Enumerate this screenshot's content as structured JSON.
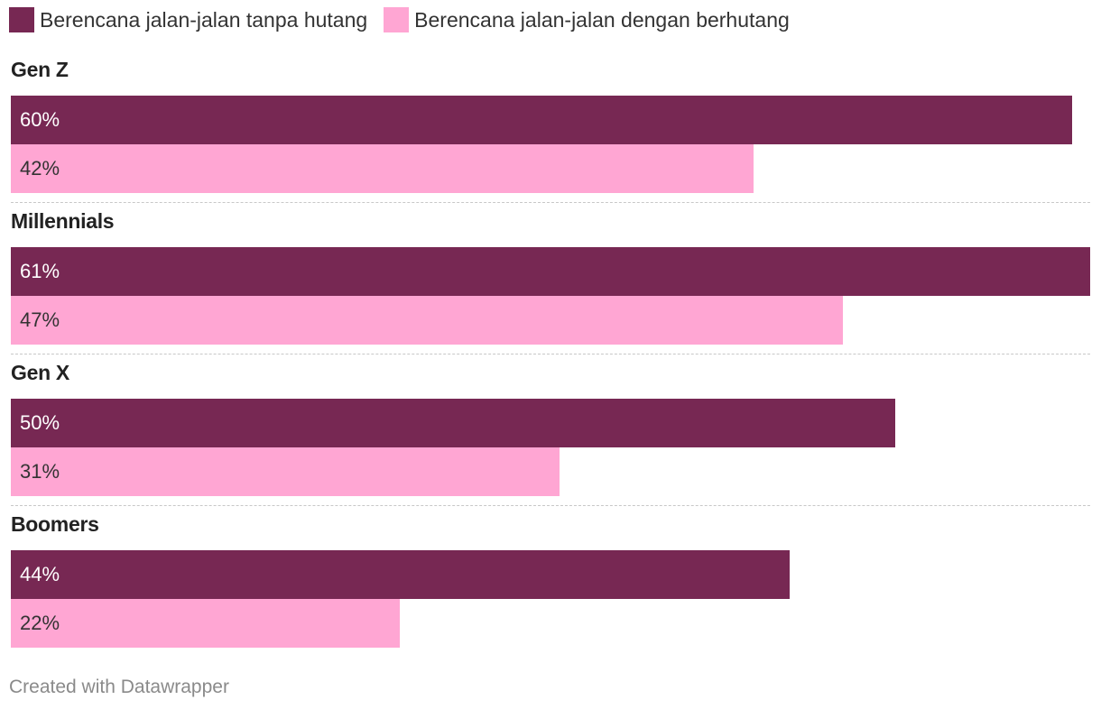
{
  "colors": {
    "series1": "#772853",
    "series2": "#ffa6d3",
    "label_on_dark": "#ffffff",
    "label_on_light": "#333333"
  },
  "legend": [
    {
      "label": "Berencana jalan-jalan tanpa hutang"
    },
    {
      "label": "Berencana jalan-jalan dengan berhutang"
    }
  ],
  "chart_data": {
    "type": "bar",
    "orientation": "horizontal",
    "categories": [
      "Gen Z",
      "Millennials",
      "Gen X",
      "Boomers"
    ],
    "series": [
      {
        "name": "Berencana jalan-jalan tanpa hutang",
        "values": [
          60,
          61,
          50,
          44
        ],
        "labels": [
          "60%",
          "61%",
          "50%",
          "44%"
        ]
      },
      {
        "name": "Berencana jalan-jalan dengan berhutang",
        "values": [
          42,
          47,
          31,
          22
        ],
        "labels": [
          "42%",
          "47%",
          "31%",
          "22%"
        ]
      }
    ],
    "xlim": [
      0,
      61
    ],
    "grid": false,
    "legend_position": "top-left"
  },
  "footer": {
    "credit": "Created with Datawrapper"
  }
}
